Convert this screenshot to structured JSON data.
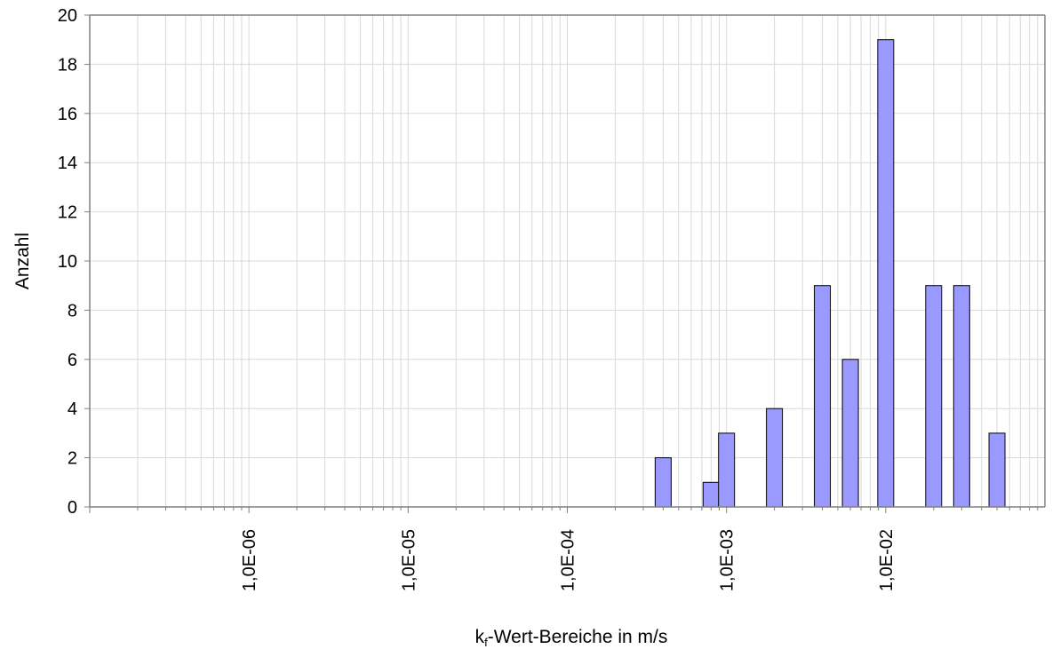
{
  "chart_data": {
    "type": "bar",
    "title": "",
    "xlabel_main": "k",
    "xlabel_sub": "f",
    "xlabel_rest": "-Wert-Bereiche in m/s",
    "ylabel": "Anzahl",
    "x_scale": "log",
    "xlim": [
      "1,0E-07",
      "1,0E-01"
    ],
    "ylim": [
      0,
      20
    ],
    "y_ticks": [
      0,
      2,
      4,
      6,
      8,
      10,
      12,
      14,
      16,
      18,
      20
    ],
    "x_ticks": [
      "1,0E-06",
      "1,0E-05",
      "1,0E-04",
      "1,0E-03",
      "1,0E-02"
    ],
    "grid": true,
    "bar_color": "#9999ff",
    "bar_edge_color": "#000000",
    "grid_color": "#d9d9d9",
    "categories": [
      "4,0E-04",
      "8,0E-04",
      "1,0E-03",
      "2,0E-03",
      "4,0E-03",
      "6,0E-03",
      "1,0E-02",
      "2,0E-02",
      "3,0E-02",
      "5,0E-02"
    ],
    "values": [
      2,
      1,
      3,
      4,
      9,
      6,
      19,
      9,
      9,
      3
    ]
  }
}
